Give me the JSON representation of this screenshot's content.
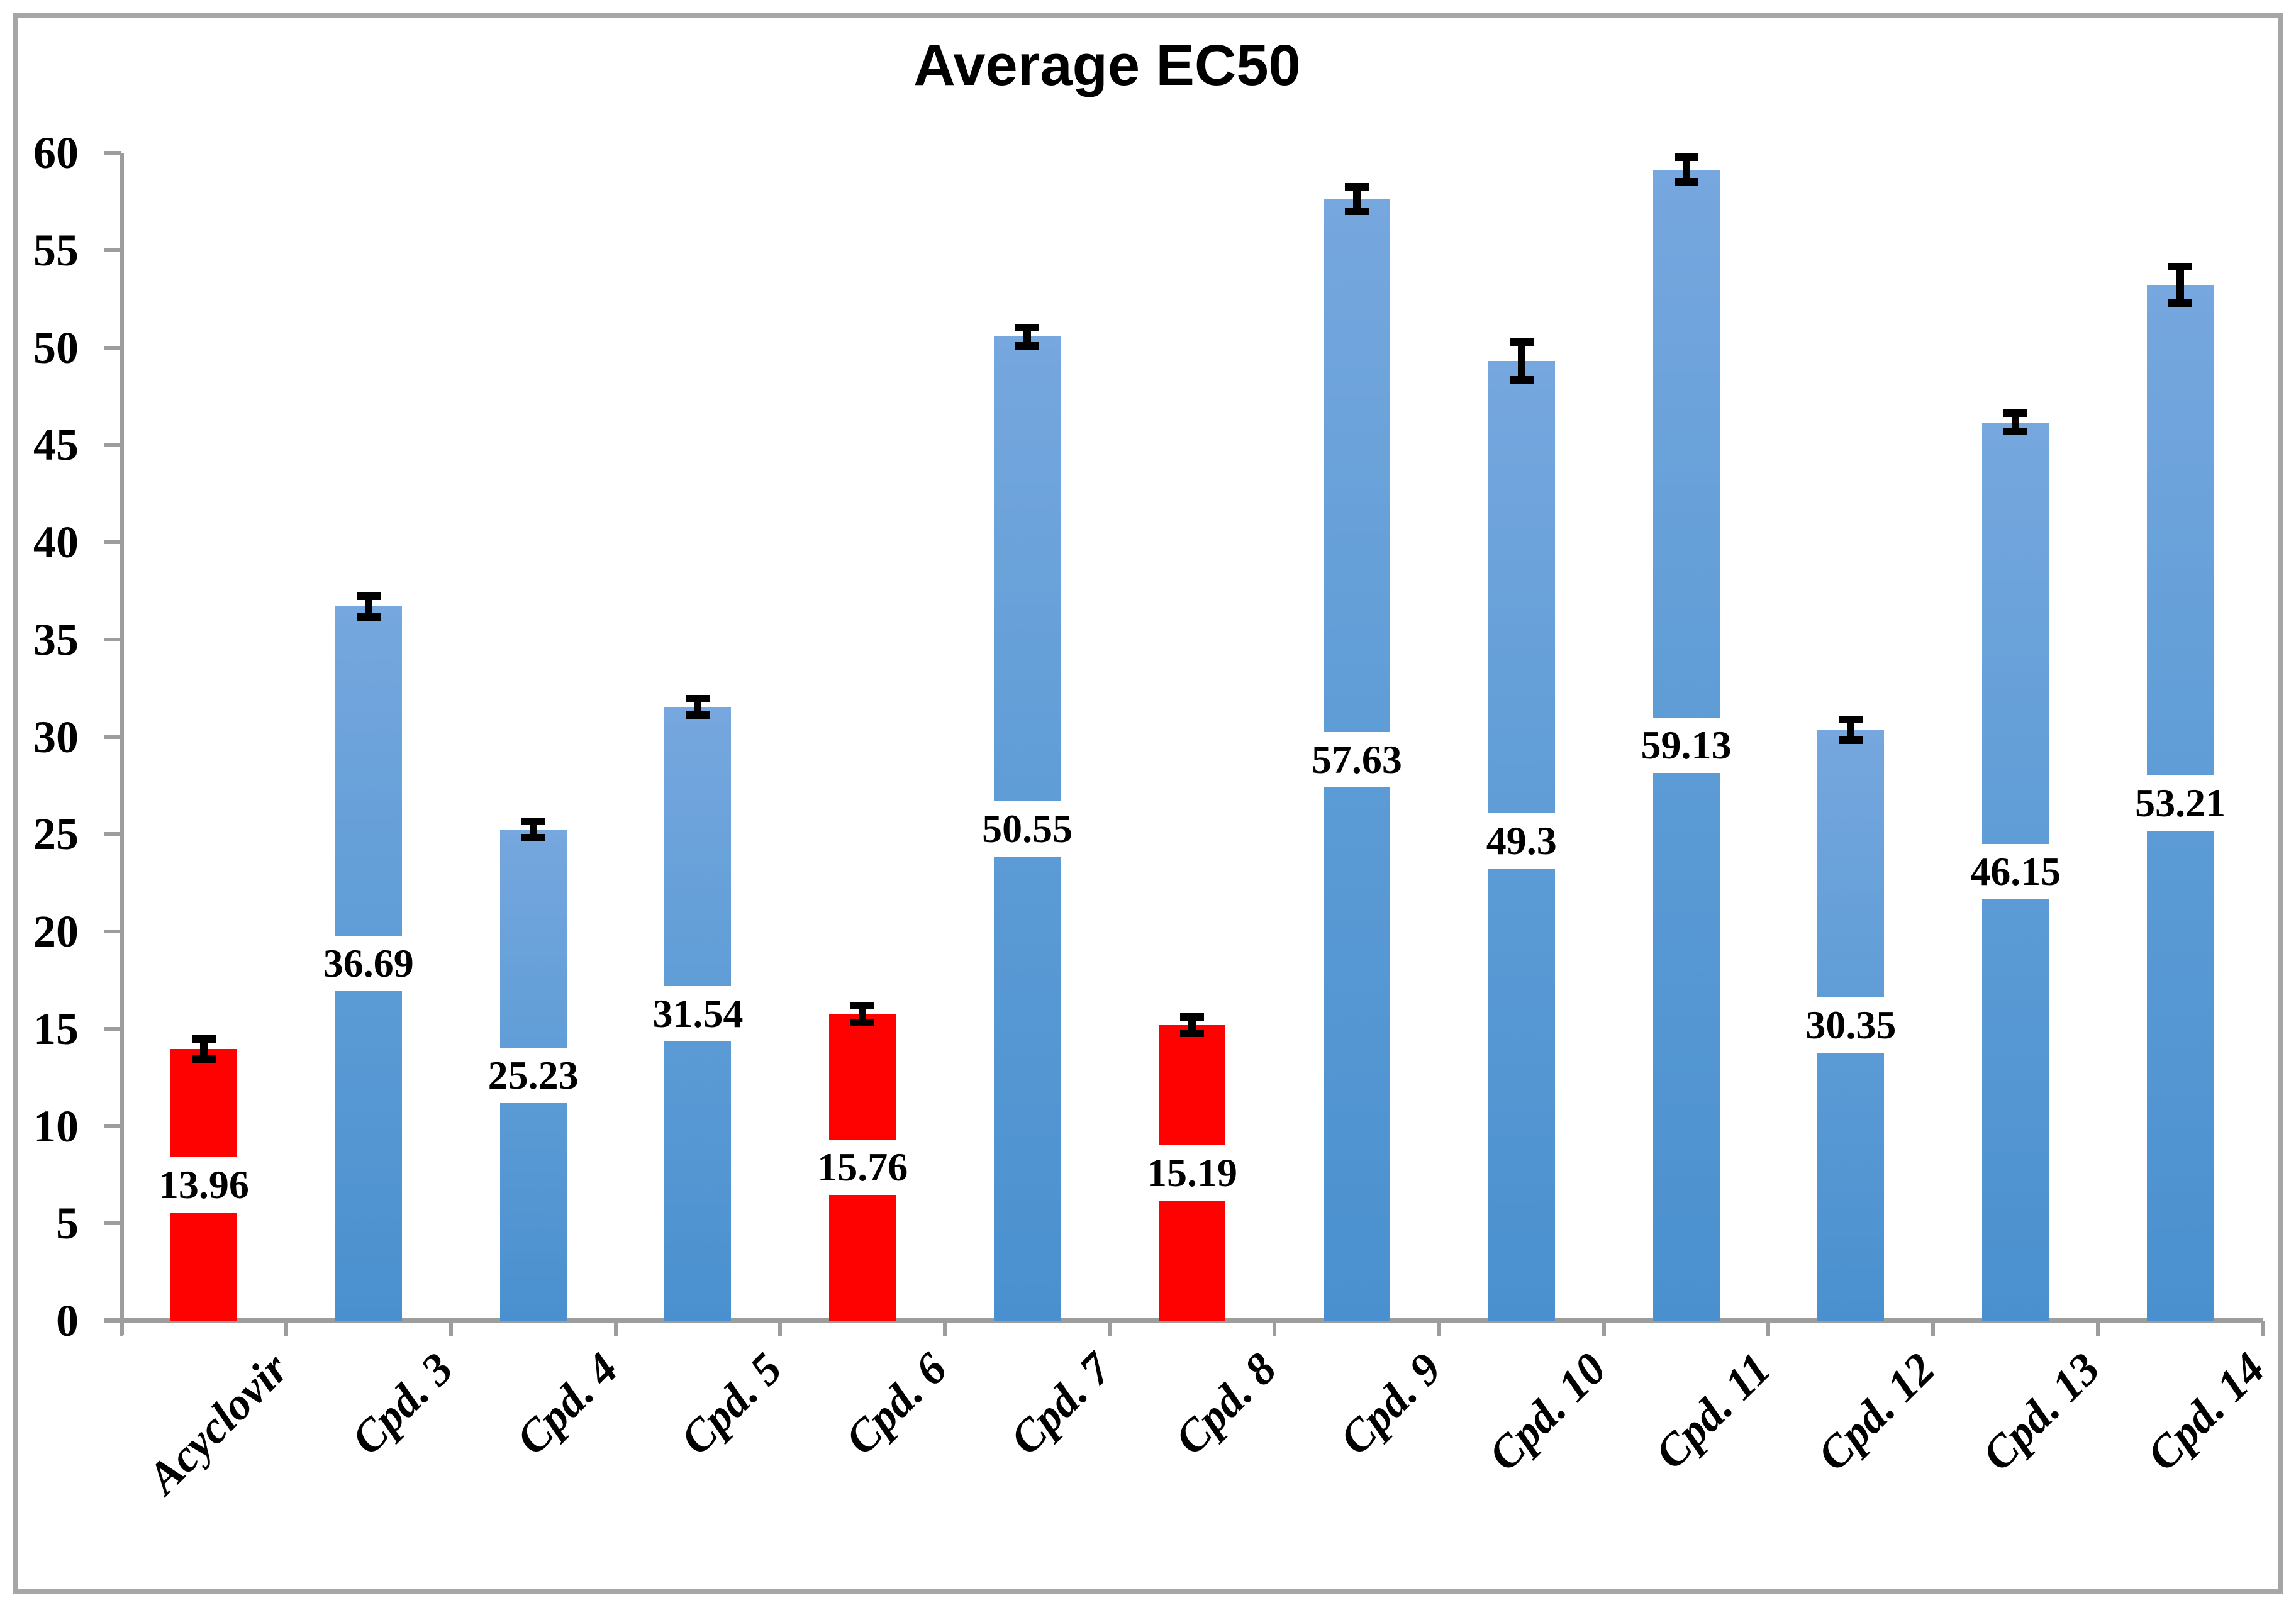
{
  "chart_data": {
    "type": "bar",
    "title": "Average EC50",
    "categories": [
      "Acyclovir",
      "Cpd. 3",
      "Cpd. 4",
      "Cpd. 5",
      "Cpd. 6",
      "Cpd. 7",
      "Cpd. 8",
      "Cpd. 9",
      "Cpd. 10",
      "Cpd. 11",
      "Cpd. 12",
      "Cpd. 13",
      "Cpd. 14"
    ],
    "values": [
      13.96,
      36.69,
      25.23,
      31.54,
      15.76,
      50.55,
      15.19,
      57.63,
      49.3,
      59.13,
      30.35,
      46.15,
      53.21
    ],
    "value_labels": [
      "13.96",
      "36.69",
      "25.23",
      "31.54",
      "15.76",
      "50.55",
      "15.19",
      "57.63",
      "49.3",
      "59.13",
      "30.35",
      "46.15",
      "53.21"
    ],
    "error_bars": [
      0.4,
      0.4,
      0.3,
      0.3,
      0.3,
      0.35,
      0.3,
      0.5,
      0.85,
      0.5,
      0.4,
      0.35,
      0.8
    ],
    "bar_colors": [
      "red",
      "blue",
      "blue",
      "blue",
      "red",
      "blue",
      "red",
      "blue",
      "blue",
      "blue",
      "blue",
      "blue",
      "blue"
    ],
    "xlabel": "",
    "ylabel": "",
    "ylim": [
      0,
      60
    ],
    "ytick_step": 5,
    "ytick_labels": [
      "0",
      "5",
      "10",
      "15",
      "20",
      "25",
      "30",
      "35",
      "40",
      "45",
      "50",
      "55",
      "60"
    ],
    "grid": "off",
    "legend": "none",
    "value_label_position": "center-of-bar",
    "colors": {
      "bar_blue": "#5b9bd5",
      "bar_blue_gradient_top": "#76a7de",
      "bar_blue_gradient_bottom": "#4a90cf",
      "bar_red": "#fe0101",
      "axis_line": "#9d9d9d",
      "chart_border": "#a6a6a6",
      "error_bar": "#000000",
      "value_label_background": "#ffffff",
      "text": "#000000"
    }
  }
}
